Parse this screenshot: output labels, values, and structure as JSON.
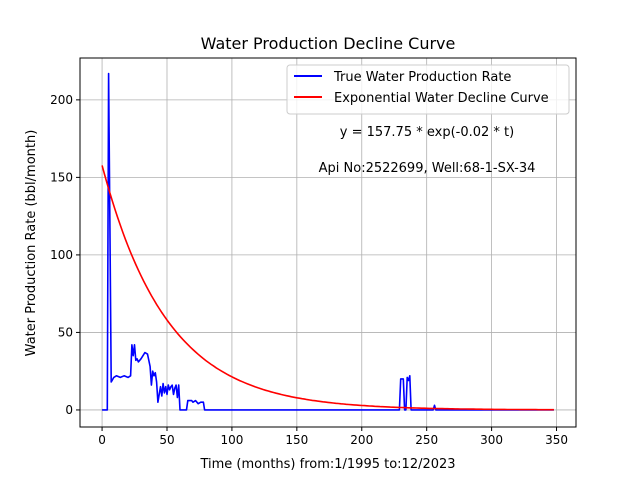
{
  "chart_data": {
    "type": "line",
    "title": "Water Production Decline Curve",
    "xlabel": "Time (months) from:1/1995 to:12/2023",
    "ylabel": "Water Production Rate (bbl/month)",
    "xlim": [
      -17,
      365
    ],
    "ylim": [
      -11,
      227
    ],
    "x_ticks": [
      0,
      50,
      100,
      150,
      200,
      250,
      300,
      350
    ],
    "y_ticks": [
      0,
      50,
      100,
      150,
      200
    ],
    "grid": true,
    "legend_position": "top-right",
    "series": [
      {
        "name": "True Water Production Rate",
        "color": "#0000ff",
        "x": [
          0,
          4,
          5,
          6,
          7,
          9,
          11,
          14,
          17,
          20,
          22,
          23,
          24,
          25,
          26,
          27,
          28,
          30,
          33,
          35,
          37,
          38,
          39,
          40,
          41,
          42,
          43,
          44,
          45,
          46,
          47,
          48,
          49,
          50,
          51,
          52,
          53,
          54,
          55,
          56,
          57,
          58,
          59,
          60,
          61,
          62,
          63,
          64,
          65,
          66,
          67,
          68,
          69,
          70,
          72,
          74,
          76,
          78,
          79,
          80,
          81,
          82,
          83,
          85,
          100,
          150,
          200,
          229,
          230,
          231,
          232,
          233,
          234,
          235,
          236,
          237,
          238,
          239,
          240,
          241,
          245,
          250,
          255,
          256,
          257,
          260,
          300,
          348
        ],
        "y": [
          0,
          0,
          217,
          120,
          18,
          21,
          22,
          21,
          22,
          21,
          22,
          42,
          35,
          42,
          32,
          33,
          31,
          33,
          37,
          36,
          28,
          16,
          25,
          22,
          24,
          18,
          5,
          10,
          15,
          9,
          17,
          11,
          15,
          10,
          16,
          13,
          15,
          16,
          10,
          14,
          16,
          8,
          16,
          0,
          0,
          0,
          0,
          0,
          0,
          6,
          6,
          6,
          6,
          5,
          6,
          4,
          5,
          5,
          0,
          0,
          0,
          0,
          0,
          0,
          0,
          0,
          0,
          0,
          20,
          20,
          20,
          0,
          0,
          21,
          19,
          22,
          0,
          0,
          0,
          0,
          0,
          0,
          0,
          3,
          0,
          0,
          0,
          0
        ]
      },
      {
        "name": "Exponential Water Decline Curve",
        "color": "#ff0000",
        "equation": "y = 157.75 * exp(-0.02 * t)",
        "a": 157.75,
        "b": 0.02,
        "x_range": [
          0,
          348
        ]
      }
    ],
    "annotations": [
      "y = 157.75 * exp(-0.02 * t)",
      "Api No:2522699, Well:68-1-SX-34"
    ]
  }
}
